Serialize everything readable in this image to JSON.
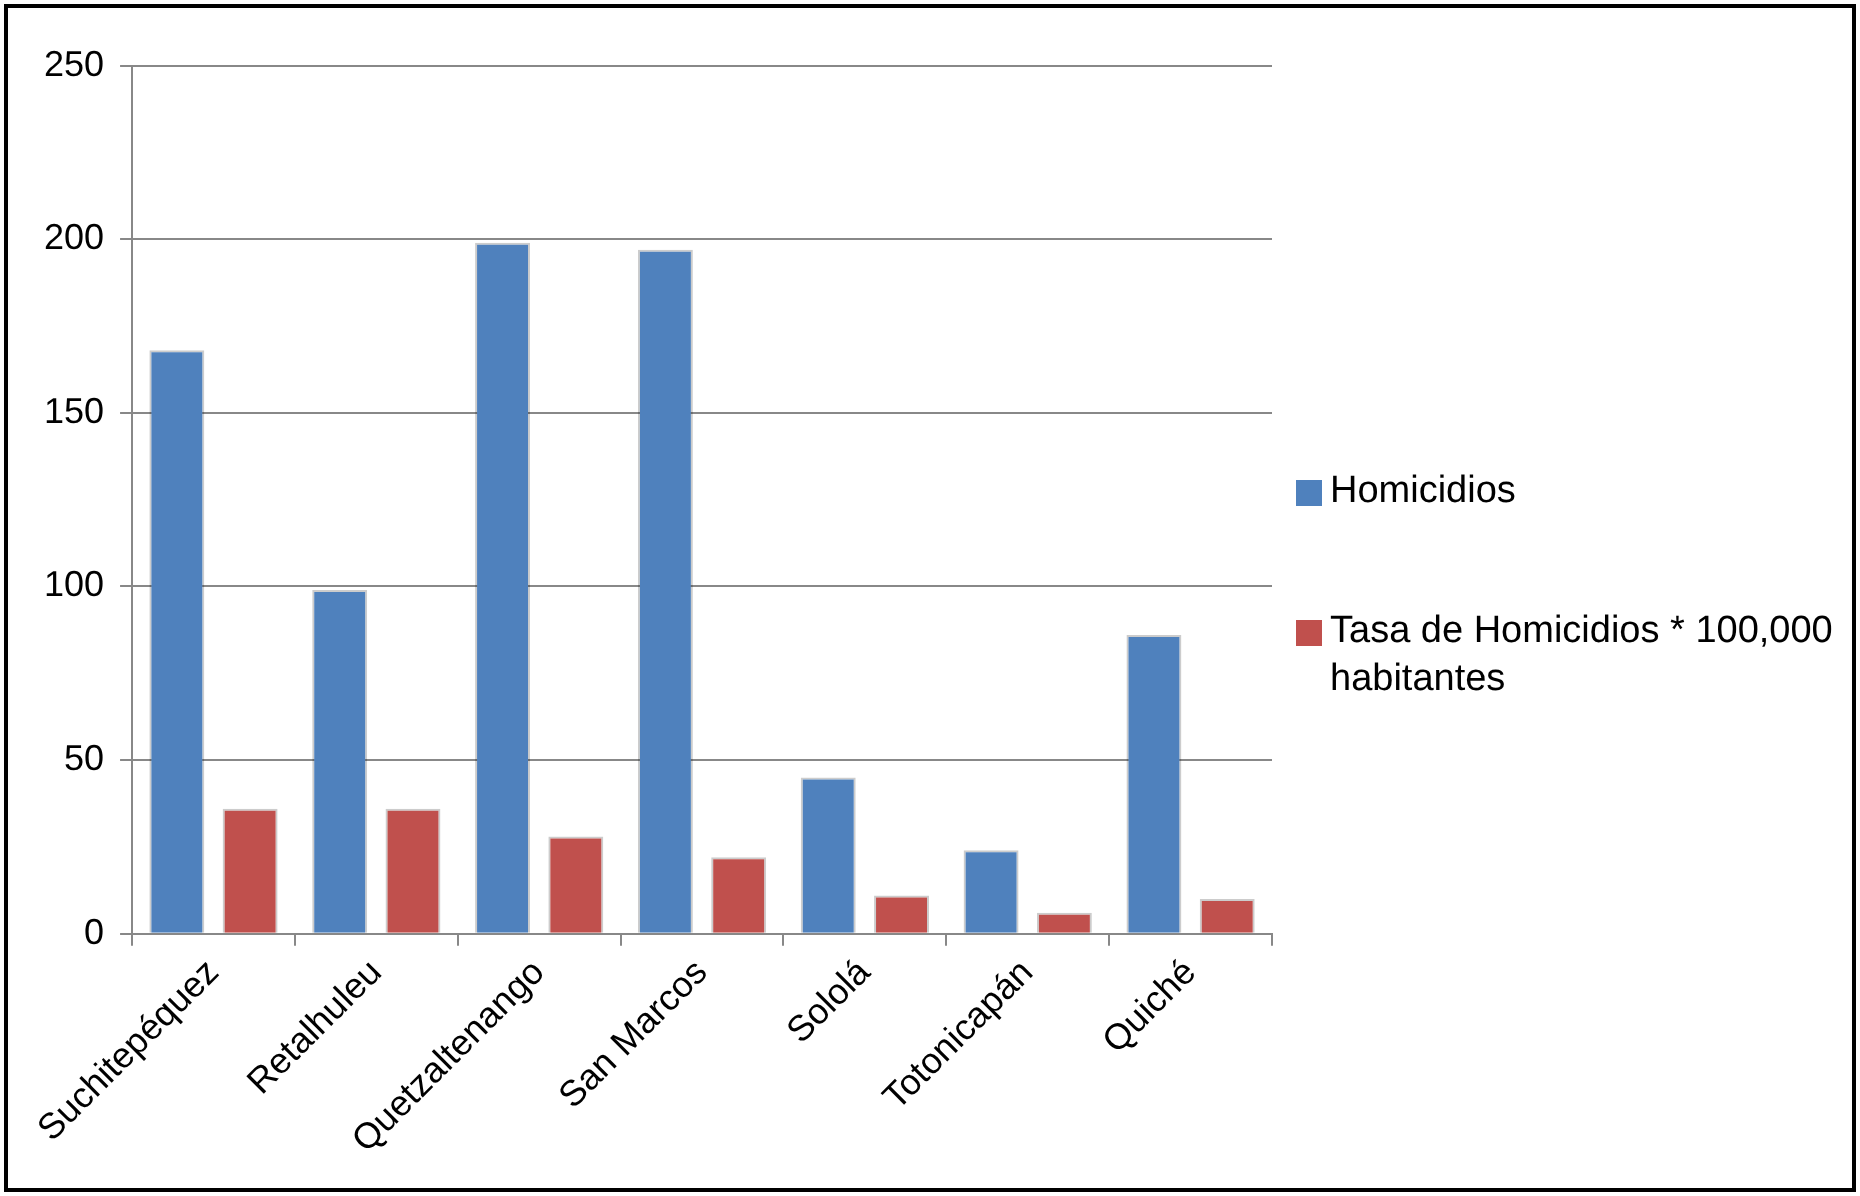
{
  "chart_data": {
    "type": "bar",
    "categories": [
      "Suchitepéquez",
      "Retalhuleu",
      "Quetzaltenango",
      "San Marcos",
      "Sololá",
      "Totonicapán",
      "Quiché"
    ],
    "series": [
      {
        "name": "Homicidios",
        "color": "#4f81bd",
        "values": [
          168,
          99,
          199,
          197,
          45,
          24,
          86
        ]
      },
      {
        "name": "Tasa de Homicidios * 100,000 habitantes",
        "color": "#c0504d",
        "values": [
          36,
          36,
          28,
          22,
          11,
          6,
          10
        ]
      }
    ],
    "ylim": [
      0,
      250
    ],
    "yticks": [
      0,
      50,
      100,
      150,
      200,
      250
    ],
    "grid": "y",
    "legend": "right"
  }
}
